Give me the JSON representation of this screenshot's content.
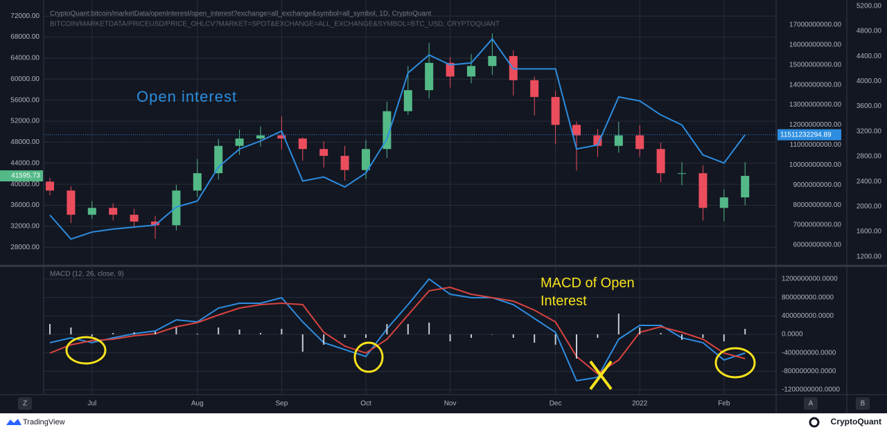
{
  "chart_data": [
    {
      "type": "candlestick",
      "title": "CryptoQuant:bitcoin/marketData/openInterest/open_interest?exchange=all_exchange&symbol=all_symbol, 1D, CryptoQuant",
      "subtitle": "BITCOIN/MARKETDATA/PRICEUSD/PRICE_OHLCV?MARKET=SPOT&EXCHANGE=ALL_EXCHANGE&SYMBOL=BTC_USD, CRYPTOQUANT",
      "annotation": "Open interest",
      "candles": {
        "open": [
          40500,
          38800,
          34200,
          35500,
          34200,
          32900,
          32200,
          38800,
          42100,
          47300,
          48700,
          49300,
          48700,
          46700,
          45400,
          42700,
          46700,
          53900,
          57900,
          63100,
          60500,
          62500,
          64400,
          59800,
          56600,
          51300,
          49300,
          47300,
          49300,
          46700,
          42100,
          42100,
          35500,
          37500
        ],
        "high": [
          41200,
          39600,
          36800,
          36400,
          35300,
          34000,
          39900,
          44800,
          48600,
          50400,
          51000,
          52900,
          48900,
          48200,
          47300,
          48400,
          55700,
          62500,
          66900,
          64200,
          64800,
          68700,
          65500,
          60500,
          57800,
          51900,
          50500,
          51900,
          51200,
          47900,
          44200,
          43600,
          39000,
          44200
        ],
        "low": [
          37900,
          32600,
          33400,
          33100,
          31700,
          29600,
          31200,
          37600,
          40900,
          45600,
          47200,
          46600,
          44500,
          43200,
          40700,
          41000,
          45000,
          53200,
          56300,
          58400,
          59200,
          60800,
          56900,
          53100,
          47600,
          42600,
          45200,
          46000,
          45200,
          40400,
          39800,
          33100,
          33000,
          36000
        ],
        "close": [
          38800,
          34200,
          35500,
          34200,
          32900,
          32200,
          38800,
          42100,
          47300,
          48700,
          49300,
          48700,
          46700,
          45400,
          42700,
          46700,
          53900,
          57900,
          63100,
          60500,
          62500,
          64400,
          59800,
          56600,
          51300,
          49300,
          47300,
          49300,
          46700,
          42100,
          42100,
          35500,
          37500,
          41595.73
        ],
        "up_color": "#53b987",
        "down_color": "#eb4d5c"
      },
      "series": [
        {
          "color": "#2d8de0",
          "axis": "y2",
          "values": [
            7500000000,
            6300000000,
            6650000000,
            6800000000,
            6900000000,
            7000000000,
            7900000000,
            8200000000,
            9900000000,
            10800000000,
            11200000000,
            11700000000,
            9200000000,
            9400000000,
            8900000000,
            9600000000,
            11300000000,
            14600000000,
            15500000000,
            15000000000,
            15100000000,
            16300000000,
            14800000000,
            14800000000,
            14800000000,
            10800000000,
            11000000000,
            13400000000,
            13200000000,
            12500000000,
            12000000000,
            10500000000,
            10100000000,
            11511232294.89
          ]
        }
      ],
      "ylim": [
        25000,
        74400
      ],
      "yticks": [
        {
          "value": 28000,
          "label": "28000.00"
        },
        {
          "value": 32000,
          "label": "32000.00"
        },
        {
          "value": 36000,
          "label": "36000.00"
        },
        {
          "value": 40000,
          "label": "40000.00"
        },
        {
          "value": 44000,
          "label": "44000.00"
        },
        {
          "value": 48000,
          "label": "48000.00"
        },
        {
          "value": 52000,
          "label": "52000.00"
        },
        {
          "value": 56000,
          "label": "56000.00"
        },
        {
          "value": 60000,
          "label": "60000.00"
        },
        {
          "value": 64000,
          "label": "64000.00"
        },
        {
          "value": 68000,
          "label": "68000.00"
        },
        {
          "value": 72000,
          "label": "72000.00"
        }
      ],
      "y2lim": [
        5100000000,
        18070000000
      ],
      "y2ticks": [
        {
          "value": 6000000000,
          "label": "6000000000.00"
        },
        {
          "value": 7000000000,
          "label": "7000000000.00"
        },
        {
          "value": 8000000000,
          "label": "8000000000.00"
        },
        {
          "value": 9000000000,
          "label": "9000000000.00"
        },
        {
          "value": 10000000000,
          "label": "10000000000.00"
        },
        {
          "value": 11000000000,
          "label": "11000000000.00"
        },
        {
          "value": 12000000000,
          "label": "12000000000.00"
        },
        {
          "value": 13000000000,
          "label": "13000000000.00"
        },
        {
          "value": 14000000000,
          "label": "14000000000.00"
        },
        {
          "value": 15000000000,
          "label": "15000000000.00"
        },
        {
          "value": 16000000000,
          "label": "16000000000.00"
        },
        {
          "value": 17000000000,
          "label": "17000000000.00"
        }
      ],
      "y3lim": [
        1098,
        5242
      ],
      "y3ticks": [
        {
          "value": 1200,
          "label": "1200.00"
        },
        {
          "value": 1600,
          "label": "1600.00"
        },
        {
          "value": 2000,
          "label": "2000.00"
        },
        {
          "value": 2400,
          "label": "2400.00"
        },
        {
          "value": 2800,
          "label": "2800.00"
        },
        {
          "value": 3200,
          "label": "3200.00"
        },
        {
          "value": 3600,
          "label": "3600.00"
        },
        {
          "value": 4000,
          "label": "4000.00"
        },
        {
          "value": 4400,
          "label": "4400.00"
        },
        {
          "value": 4800,
          "label": "4800.00"
        },
        {
          "value": 5200,
          "label": "5200.00"
        }
      ],
      "grid": true
    },
    {
      "type": "macd",
      "title": "MACD (12, 26, close, 9)",
      "annotation": "MACD of Open Interest",
      "categories": [
        null,
        null,
        "Jul",
        null,
        null,
        null,
        null,
        "Aug",
        null,
        null,
        null,
        "Sep",
        null,
        null,
        null,
        "Oct",
        null,
        null,
        null,
        "Nov",
        null,
        null,
        null,
        null,
        "Dec",
        null,
        null,
        null,
        "2022",
        null,
        null,
        null,
        "Feb",
        null
      ],
      "series": [
        {
          "kind": "line",
          "color": "#2d8de0",
          "values": [
            -180000000,
            -75000000,
            -180000000,
            -75000000,
            15000000,
            75000000,
            315000000,
            270000000,
            570000000,
            675000000,
            675000000,
            795000000,
            270000000,
            -180000000,
            -330000000,
            -480000000,
            120000000,
            645000000,
            1200000000,
            870000000,
            795000000,
            795000000,
            645000000,
            345000000,
            45000000,
            -1005000000,
            -930000000,
            -105000000,
            195000000,
            195000000,
            -75000000,
            -180000000,
            -555000000,
            -405000000
          ]
        },
        {
          "kind": "line",
          "color": "#d9443f",
          "values": [
            -405000000,
            -225000000,
            -135000000,
            -105000000,
            -30000000,
            15000000,
            165000000,
            255000000,
            420000000,
            570000000,
            645000000,
            675000000,
            645000000,
            45000000,
            -255000000,
            -405000000,
            -105000000,
            420000000,
            945000000,
            1020000000,
            870000000,
            795000000,
            720000000,
            525000000,
            270000000,
            -480000000,
            -855000000,
            -555000000,
            45000000,
            165000000,
            45000000,
            -105000000,
            -405000000,
            -525000000
          ]
        },
        {
          "kind": "histogram",
          "color": "#c9ccd4",
          "values": [
            225000000,
            150000000,
            -45000000,
            30000000,
            45000000,
            60000000,
            150000000,
            15000000,
            150000000,
            105000000,
            30000000,
            120000000,
            -375000000,
            -225000000,
            -75000000,
            -75000000,
            225000000,
            225000000,
            255000000,
            -150000000,
            -75000000,
            0,
            -75000000,
            -180000000,
            -225000000,
            -525000000,
            -75000000,
            450000000,
            150000000,
            30000000,
            -120000000,
            -75000000,
            -150000000,
            120000000
          ]
        }
      ],
      "ylim": [
        -1275000000,
        1425000000
      ],
      "yticks": [
        {
          "value": -1200000000,
          "label": "-1200000000.0000"
        },
        {
          "value": -800000000,
          "label": "-800000000.0000"
        },
        {
          "value": -400000000,
          "label": "-400000000.0000"
        },
        {
          "value": 0,
          "label": "0.0000"
        },
        {
          "value": 400000000,
          "label": "400000000.0000"
        },
        {
          "value": 800000000,
          "label": "800000000.0000"
        },
        {
          "value": 1200000000,
          "label": "1200000000.0000"
        }
      ],
      "grid": true
    }
  ],
  "axis_buttons": [
    "Z",
    "A",
    "B"
  ],
  "footer": {
    "left": "TradingView",
    "right": "CryptoQuant"
  }
}
